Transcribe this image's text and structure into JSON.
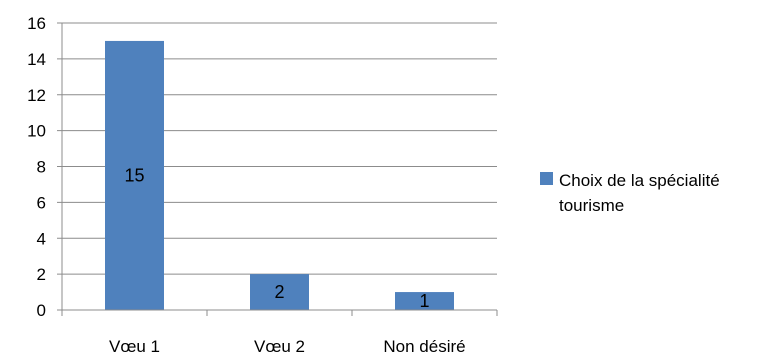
{
  "chart_data": {
    "type": "bar",
    "title": "",
    "xlabel": "",
    "ylabel": "",
    "categories": [
      "Vœu 1",
      "Vœu 2",
      "Non désiré"
    ],
    "series": [
      {
        "name": "Choix de la spécialité tourisme",
        "values": [
          15,
          2,
          1
        ],
        "color": "#4f81bd"
      }
    ],
    "data_labels": [
      "15",
      "2",
      "1"
    ],
    "ylim": [
      0,
      16
    ],
    "yticks": [
      0,
      2,
      4,
      6,
      8,
      10,
      12,
      14,
      16
    ],
    "grid": true,
    "legend": "right"
  }
}
